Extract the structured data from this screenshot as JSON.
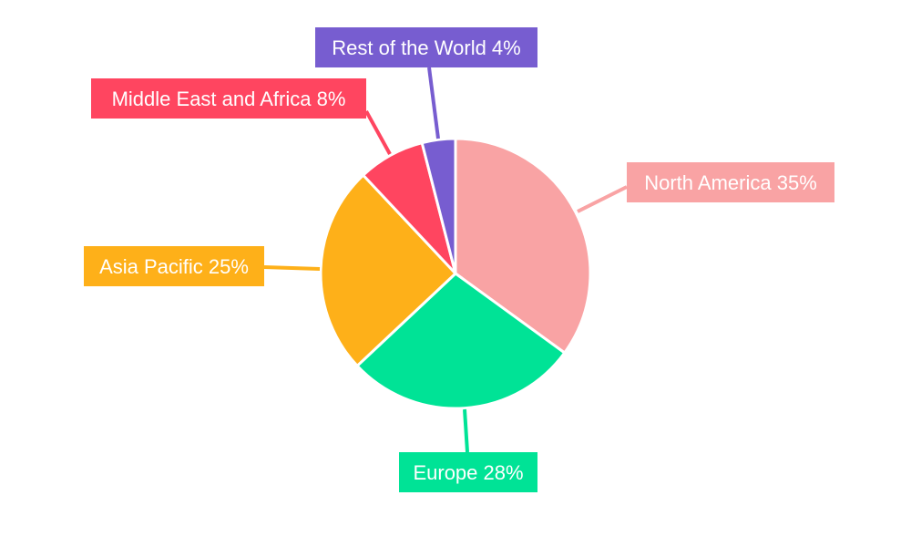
{
  "chart_data": {
    "type": "pie",
    "title": "",
    "start_angle": "12 o'clock, clockwise",
    "slices": [
      {
        "label": "North America",
        "value": 35,
        "display": "North America 35%",
        "color": "#F9A3A4"
      },
      {
        "label": "Europe",
        "value": 28,
        "display": "Europe 28%",
        "color": "#00E396"
      },
      {
        "label": "Asia Pacific",
        "value": 25,
        "display": "Asia Pacific 25%",
        "color": "#FEB019"
      },
      {
        "label": "Middle East and Africa",
        "value": 8,
        "display": "Middle East and Africa 8%",
        "color": "#FF4560"
      },
      {
        "label": "Rest of the World",
        "value": 4,
        "display": "Rest of the World 4%",
        "color": "#775DD0"
      }
    ],
    "legend": "none",
    "data_labels": "outside boxes with leader lines"
  }
}
